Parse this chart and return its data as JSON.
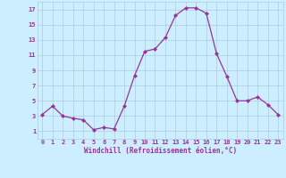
{
  "x": [
    0,
    1,
    2,
    3,
    4,
    5,
    6,
    7,
    8,
    9,
    10,
    11,
    12,
    13,
    14,
    15,
    16,
    17,
    18,
    19,
    20,
    21,
    22,
    23
  ],
  "y": [
    3.2,
    4.3,
    3.0,
    2.7,
    2.5,
    1.2,
    1.5,
    1.3,
    4.3,
    8.3,
    11.5,
    11.8,
    13.3,
    16.2,
    17.2,
    17.2,
    16.5,
    11.2,
    8.2,
    5.0,
    5.0,
    5.5,
    4.5,
    3.2
  ],
  "line_color": "#993399",
  "marker_color": "#993399",
  "bg_color": "#cceeff",
  "grid_color": "#aaccdd",
  "xlabel": "Windchill (Refroidissement éolien,°C)",
  "xlabel_color": "#993399",
  "tick_color": "#993399",
  "ylim": [
    0,
    18
  ],
  "xlim": [
    -0.5,
    23.5
  ],
  "yticks": [
    1,
    3,
    5,
    7,
    9,
    11,
    13,
    15,
    17
  ],
  "xticks": [
    0,
    1,
    2,
    3,
    4,
    5,
    6,
    7,
    8,
    9,
    10,
    11,
    12,
    13,
    14,
    15,
    16,
    17,
    18,
    19,
    20,
    21,
    22,
    23
  ],
  "tick_fontsize": 5.0,
  "xlabel_fontsize": 5.5
}
